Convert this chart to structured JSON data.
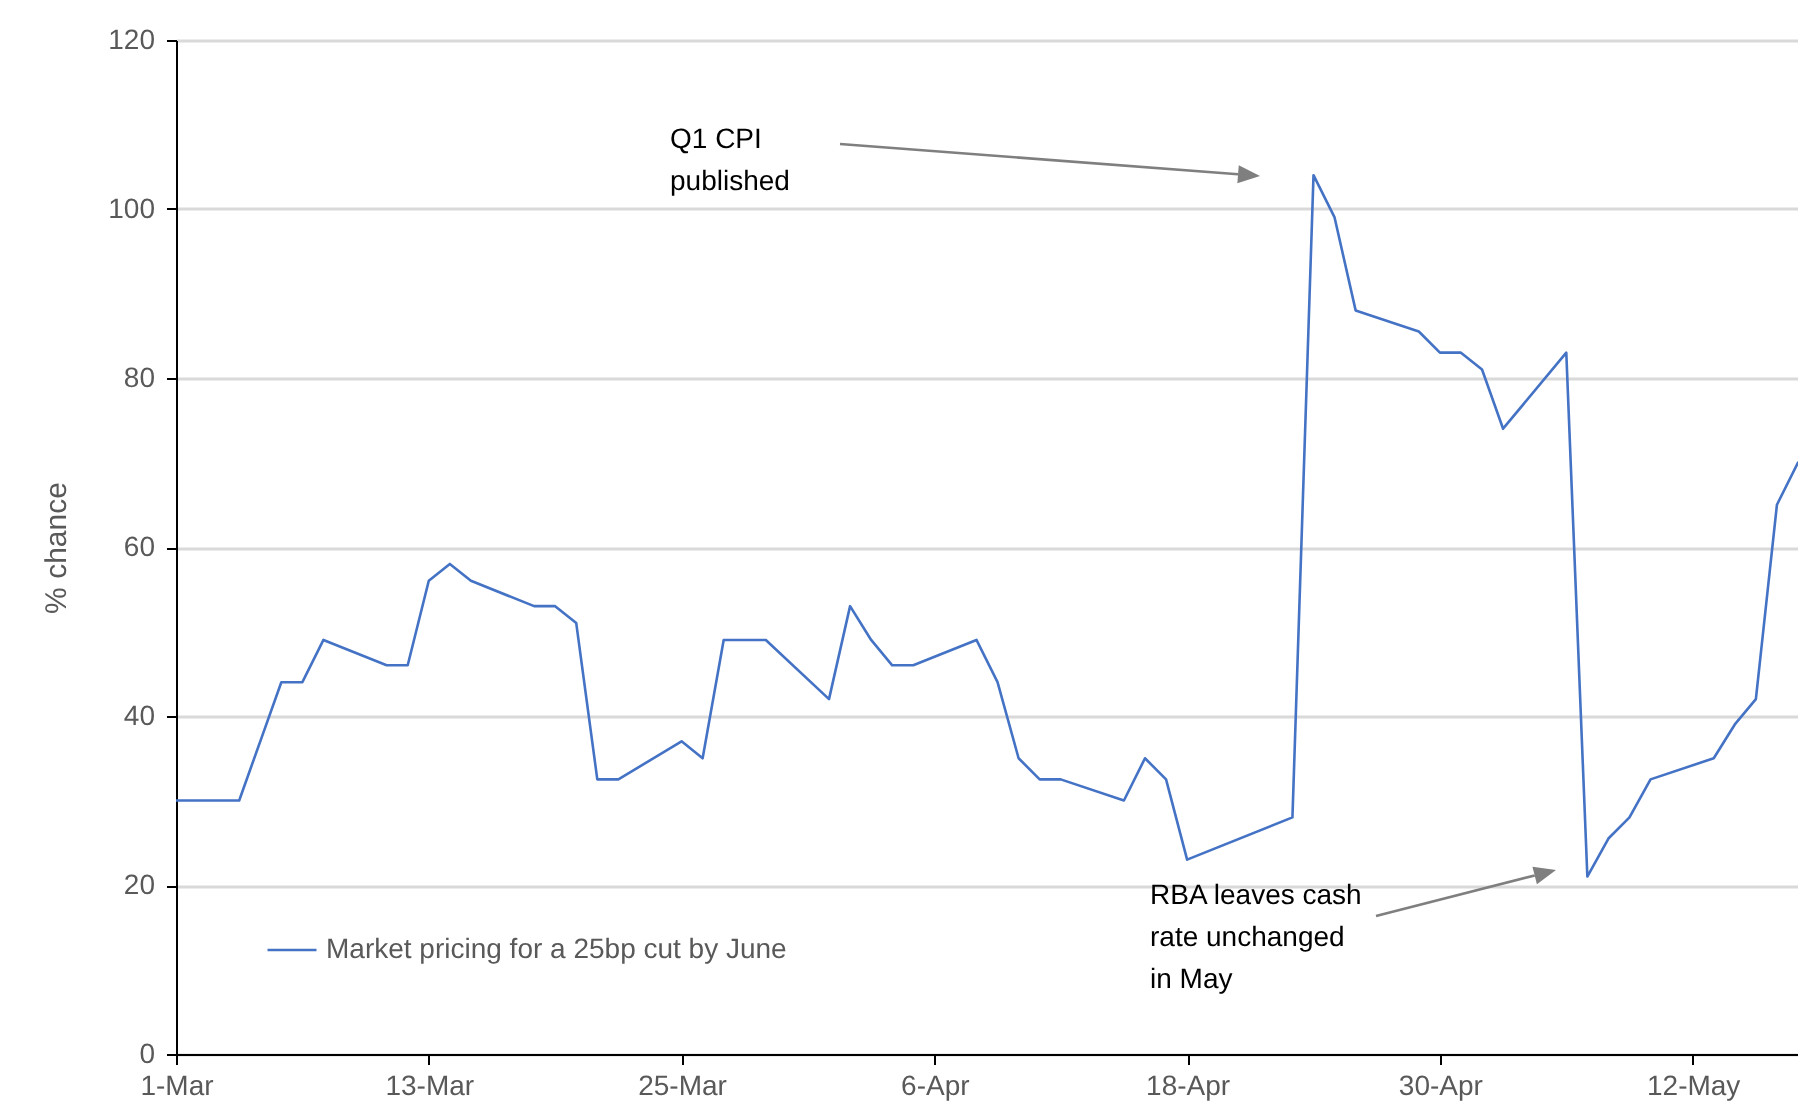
{
  "chart_data": {
    "type": "line",
    "ylabel": "% chance",
    "legend": "bottom left",
    "grid": "y",
    "xlim": [
      "--03-01",
      "--05-17"
    ],
    "xticks": [
      {
        "value": "--03-01",
        "label": "1-Mar"
      },
      {
        "value": "--03-13",
        "label": "13-Mar"
      },
      {
        "value": "--03-25",
        "label": "25-Mar"
      },
      {
        "value": "--04-06",
        "label": "6-Apr"
      },
      {
        "value": "--04-18",
        "label": "18-Apr"
      },
      {
        "value": "--04-30",
        "label": "30-Apr"
      },
      {
        "value": "--05-12",
        "label": "12-May"
      }
    ],
    "ylim": [
      0,
      120
    ],
    "yticks": [
      0,
      20,
      40,
      60,
      80,
      100,
      120
    ],
    "x": [
      "--03-01",
      "--03-04",
      "--03-05",
      "--03-06",
      "--03-07",
      "--03-08",
      "--03-11",
      "--03-12",
      "--03-13",
      "--03-14",
      "--03-15",
      "--03-18",
      "--03-19",
      "--03-20",
      "--03-21",
      "--03-22",
      "--03-25",
      "--03-26",
      "--03-27",
      "--03-29",
      "--04-01",
      "--04-02",
      "--04-03",
      "--04-04",
      "--04-05",
      "--04-08",
      "--04-09",
      "--04-10",
      "--04-11",
      "--04-12",
      "--04-15",
      "--04-16",
      "--04-17",
      "--04-18",
      "--04-23",
      "--04-24",
      "--04-25",
      "--04-26",
      "--04-29",
      "--04-30",
      "--05-01",
      "--05-02",
      "--05-03",
      "--05-06",
      "--05-07",
      "--05-08",
      "--05-09",
      "--05-10",
      "--05-13",
      "--05-14",
      "--05-15",
      "--05-16",
      "--05-17"
    ],
    "series": [
      {
        "name": "Market pricing for a 25bp cut by June",
        "color": "#4472c4",
        "values": [
          30,
          30,
          37,
          44,
          44,
          49,
          46,
          46,
          56,
          58,
          56,
          53,
          53,
          51,
          32.5,
          32.5,
          37,
          35,
          49,
          49,
          42,
          53,
          49,
          46,
          46,
          49,
          44,
          35,
          32.5,
          32.5,
          30,
          35,
          32.5,
          23,
          28,
          104,
          99,
          88,
          85.5,
          83,
          83,
          81,
          74,
          83,
          21,
          25.5,
          28,
          32.5,
          35,
          39,
          42,
          65,
          70
        ]
      }
    ],
    "annotations": [
      "Q1 CPI\npublished",
      "RBA leaves cash\nrate unchanged\nin May"
    ]
  }
}
